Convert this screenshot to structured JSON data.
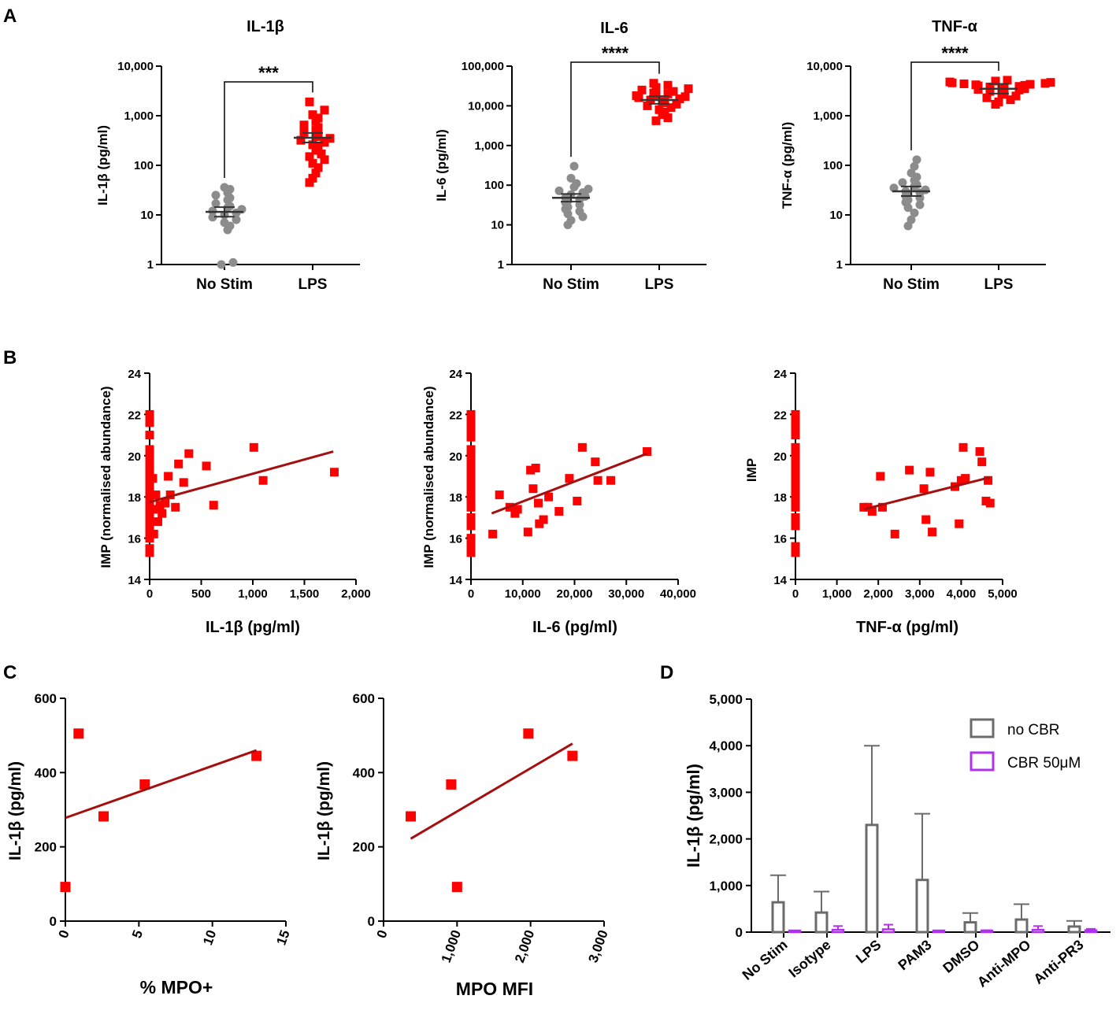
{
  "panel_labels": [
    "A",
    "B",
    "C",
    "D"
  ],
  "colors": {
    "stim": "#ff0000",
    "nostim": "#8c8c8c",
    "fit": "#a50f0f",
    "nocbr": "#6b6b6b",
    "cbr": "#b030f0"
  },
  "chart_data": [
    {
      "id": "A1",
      "type": "scatter",
      "scale": "log",
      "title": "IL-1β",
      "ylabel": "IL-1β (pg/ml)",
      "ylim": [
        1,
        10000
      ],
      "yticks": [
        "1",
        "10",
        "100",
        "1,000",
        "10,000"
      ],
      "categories": [
        "No Stim",
        "LPS"
      ],
      "significance": "***",
      "series": [
        {
          "name": "No Stim",
          "mean": 11.5,
          "values": [
            1,
            1.1,
            5,
            6,
            7,
            8,
            9,
            10,
            11,
            12,
            13,
            14,
            15,
            17,
            20,
            22,
            25,
            28,
            33,
            36
          ]
        },
        {
          "name": "LPS",
          "mean": 360,
          "values": [
            45,
            55,
            70,
            90,
            110,
            130,
            150,
            170,
            200,
            230,
            260,
            290,
            320,
            350,
            380,
            420,
            460,
            520,
            580,
            650,
            780,
            900,
            1050,
            1300,
            1900
          ]
        }
      ]
    },
    {
      "id": "A2",
      "type": "scatter",
      "scale": "log",
      "title": "IL-6",
      "ylabel": "IL-6 (pg/ml)",
      "ylim": [
        1,
        100000
      ],
      "yticks": [
        "1",
        "10",
        "100",
        "1,000",
        "10,000",
        "100,000"
      ],
      "categories": [
        "No Stim",
        "LPS"
      ],
      "significance": "****",
      "series": [
        {
          "name": "No Stim",
          "mean": 48,
          "values": [
            10,
            13,
            16,
            19,
            22,
            25,
            28,
            32,
            36,
            40,
            44,
            48,
            52,
            58,
            65,
            72,
            80,
            90,
            110,
            150,
            300
          ]
        },
        {
          "name": "LPS",
          "mean": 14000,
          "values": [
            4200,
            5000,
            6000,
            7000,
            8000,
            9000,
            10000,
            11000,
            12000,
            13000,
            14000,
            15000,
            16000,
            17000,
            18000,
            19000,
            20000,
            21000,
            23000,
            25000,
            27000,
            29000,
            33000,
            37000
          ]
        }
      ]
    },
    {
      "id": "A3",
      "type": "scatter",
      "scale": "log",
      "title": "TNF-α",
      "ylabel": "TNF-α (pg/ml)",
      "ylim": [
        1,
        10000
      ],
      "yticks": [
        "1",
        "10",
        "100",
        "1,000",
        "10,000"
      ],
      "categories": [
        "No Stim",
        "LPS"
      ],
      "significance": "****",
      "series": [
        {
          "name": "No Stim",
          "mean": 30,
          "values": [
            6,
            8,
            11,
            14,
            16,
            18,
            20,
            22,
            24,
            26,
            28,
            30,
            32,
            35,
            38,
            41,
            45,
            50,
            58,
            70,
            95,
            130
          ]
        },
        {
          "name": "LPS",
          "mean": 3500,
          "values": [
            1700,
            1900,
            2100,
            2300,
            2500,
            2700,
            2900,
            3100,
            3300,
            3400,
            3500,
            3600,
            3700,
            3800,
            3900,
            4000,
            4100,
            4200,
            4300,
            4400,
            4500,
            4600,
            4700,
            4800,
            5000,
            5200
          ]
        }
      ]
    },
    {
      "id": "B1",
      "type": "scatter",
      "xlabel": "IL-1β (pg/ml)",
      "ylabel": "IMP (normalised abundance)",
      "xlim": [
        0,
        2000
      ],
      "ylim": [
        14,
        24
      ],
      "xticks": [
        "0",
        "500",
        "1,000",
        "1,500",
        "2,000"
      ],
      "yticks": [
        "14",
        "16",
        "18",
        "20",
        "22",
        "24"
      ],
      "x": [
        0,
        0,
        0,
        0,
        0,
        0,
        0,
        0,
        0,
        0,
        0,
        0,
        0,
        0,
        0,
        0,
        0,
        0,
        0,
        30,
        40,
        50,
        60,
        80,
        100,
        120,
        150,
        180,
        200,
        250,
        280,
        330,
        380,
        550,
        620,
        1010,
        1100,
        1790
      ],
      "y": [
        15.3,
        15.5,
        16.0,
        16.4,
        16.8,
        17.1,
        17.5,
        17.8,
        18.1,
        18.4,
        18.7,
        19.0,
        19.3,
        19.7,
        20.0,
        20.3,
        21.0,
        21.6,
        22.0,
        18.9,
        16.2,
        17.4,
        18.1,
        16.8,
        17.6,
        17.2,
        17.7,
        19.0,
        18.1,
        17.5,
        19.6,
        18.7,
        20.1,
        19.5,
        17.6,
        20.4,
        18.8,
        19.2
      ],
      "fit": {
        "x": [
          0,
          1780
        ],
        "y": [
          17.75,
          20.2
        ]
      }
    },
    {
      "id": "B2",
      "type": "scatter",
      "xlabel": "IL-6 (pg/ml)",
      "ylabel": "IMP (normalised abundance)",
      "xlim": [
        0,
        40000
      ],
      "ylim": [
        14,
        24
      ],
      "xticks": [
        "0",
        "10,000",
        "20,000",
        "30,000",
        "40,000"
      ],
      "yticks": [
        "14",
        "16",
        "18",
        "20",
        "22",
        "24"
      ],
      "x": [
        0,
        0,
        0,
        0,
        0,
        0,
        0,
        0,
        0,
        0,
        0,
        0,
        0,
        0,
        0,
        0,
        0,
        0,
        0,
        4200,
        5500,
        7500,
        8500,
        9000,
        11000,
        11500,
        12000,
        12500,
        13000,
        13200,
        14000,
        15000,
        17000,
        19000,
        20500,
        21500,
        24000,
        24500,
        27000,
        34000
      ],
      "y": [
        15.3,
        15.6,
        16.0,
        16.6,
        17.0,
        17.5,
        17.8,
        18.1,
        18.4,
        18.7,
        19.0,
        19.3,
        19.7,
        20.0,
        20.3,
        20.9,
        21.3,
        21.7,
        22.0,
        16.2,
        18.1,
        17.5,
        17.2,
        17.4,
        16.3,
        19.3,
        18.4,
        19.4,
        17.7,
        16.7,
        16.9,
        18.0,
        17.3,
        18.9,
        17.8,
        20.4,
        19.7,
        18.8,
        18.8,
        20.2
      ],
      "fit": {
        "x": [
          4000,
          34000
        ],
        "y": [
          17.2,
          20.1
        ]
      }
    },
    {
      "id": "B3",
      "type": "scatter",
      "xlabel": "TNF-α (pg/ml)",
      "ylabel": "IMP",
      "xlim": [
        0,
        5000
      ],
      "ylim": [
        14,
        24
      ],
      "xticks": [
        "0",
        "1,000",
        "2,000",
        "3,000",
        "4,000",
        "5,000"
      ],
      "yticks": [
        "14",
        "16",
        "18",
        "20",
        "22",
        "24"
      ],
      "x": [
        0,
        0,
        0,
        0,
        0,
        0,
        0,
        0,
        0,
        0,
        0,
        0,
        0,
        0,
        0,
        0,
        0,
        0,
        1650,
        1750,
        1850,
        2050,
        2100,
        2400,
        2750,
        3100,
        3150,
        3250,
        3300,
        3850,
        3950,
        4000,
        4050,
        4100,
        4450,
        4500,
        4600,
        4650,
        4700
      ],
      "y": [
        15.3,
        15.6,
        16.6,
        17.0,
        17.5,
        17.9,
        18.3,
        18.6,
        19.0,
        19.3,
        19.6,
        20.0,
        20.4,
        21.0,
        21.3,
        21.6,
        21.9,
        22.0,
        17.5,
        17.5,
        17.3,
        19.0,
        17.5,
        16.2,
        19.3,
        18.4,
        16.9,
        19.2,
        16.3,
        18.5,
        16.7,
        18.8,
        20.4,
        18.9,
        20.2,
        19.7,
        17.8,
        18.8,
        17.7
      ],
      "fit": {
        "x": [
          1650,
          4700
        ],
        "y": [
          17.4,
          18.95
        ]
      }
    },
    {
      "id": "C1",
      "type": "scatter",
      "xlabel": "% MPO+",
      "ylabel": "IL-1β (pg/ml)",
      "xlim": [
        0,
        15
      ],
      "ylim": [
        0,
        600
      ],
      "xticks": [
        "0",
        "5",
        "10",
        "15"
      ],
      "yticks": [
        "0",
        "200",
        "400",
        "600"
      ],
      "x": [
        0,
        0.9,
        2.6,
        5.4,
        13.0
      ],
      "y": [
        92,
        505,
        282,
        368,
        445
      ],
      "fit": {
        "x": [
          0,
          13.0
        ],
        "y": [
          278,
          460
        ]
      }
    },
    {
      "id": "C2",
      "type": "scatter",
      "xlabel": "MPO MFI",
      "ylabel": "IL-1β (pg/ml)",
      "xlim": [
        0,
        3000
      ],
      "ylim": [
        0,
        600
      ],
      "xticks": [
        "0",
        "1,000",
        "2,000",
        "3,000"
      ],
      "yticks": [
        "0",
        "200",
        "400",
        "600"
      ],
      "x": [
        370,
        920,
        1000,
        1970,
        2570
      ],
      "y": [
        282,
        368,
        92,
        505,
        445
      ],
      "fit": {
        "x": [
          370,
          2570
        ],
        "y": [
          222,
          478
        ]
      }
    },
    {
      "id": "D",
      "type": "bar",
      "ylabel": "IL-1β (pg/ml)",
      "ylim": [
        0,
        5000
      ],
      "yticks": [
        "0",
        "1,000",
        "2,000",
        "3,000",
        "4,000",
        "5,000"
      ],
      "categories": [
        "No Stim",
        "Isotype",
        "LPS",
        "PAM3",
        "DMSO",
        "Anti-MPO",
        "Anti-PR3"
      ],
      "series": [
        {
          "name": "no CBR",
          "values": [
            640,
            420,
            2300,
            1120,
            210,
            270,
            120
          ],
          "error": [
            580,
            450,
            1700,
            1420,
            200,
            330,
            120
          ]
        },
        {
          "name": "CBR 50μM",
          "values": [
            0,
            50,
            60,
            0,
            20,
            50,
            40
          ],
          "error": [
            0,
            80,
            100,
            0,
            20,
            80,
            30
          ]
        }
      ]
    }
  ]
}
